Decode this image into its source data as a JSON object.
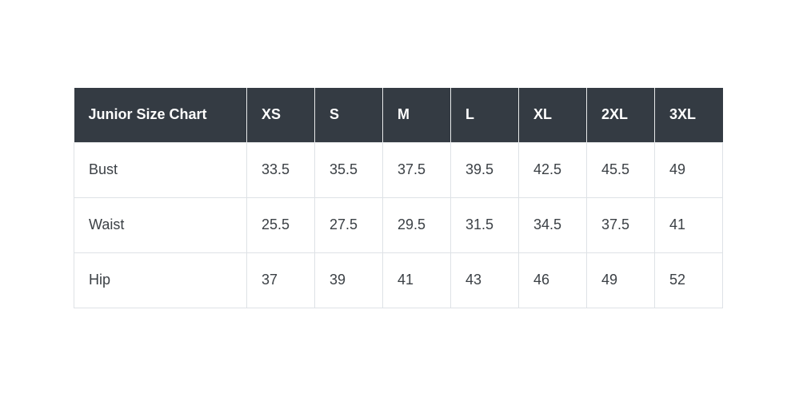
{
  "chart_data": {
    "type": "table",
    "title": "Junior Size Chart",
    "columns": [
      "XS",
      "S",
      "M",
      "L",
      "XL",
      "2XL",
      "3XL"
    ],
    "rows": [
      {
        "label": "Bust",
        "values": [
          "33.5",
          "35.5",
          "37.5",
          "39.5",
          "42.5",
          "45.5",
          "49"
        ]
      },
      {
        "label": "Waist",
        "values": [
          "25.5",
          "27.5",
          "29.5",
          "31.5",
          "34.5",
          "37.5",
          "41"
        ]
      },
      {
        "label": "Hip",
        "values": [
          "37",
          "39",
          "41",
          "43",
          "46",
          "49",
          "52"
        ]
      }
    ],
    "colors": {
      "header_bg": "#343b43",
      "header_text": "#ffffff",
      "body_text": "#3b4045",
      "body_border": "#dee2e6",
      "header_border": "#e7e9ea",
      "page_bg": "#ffffff"
    }
  }
}
